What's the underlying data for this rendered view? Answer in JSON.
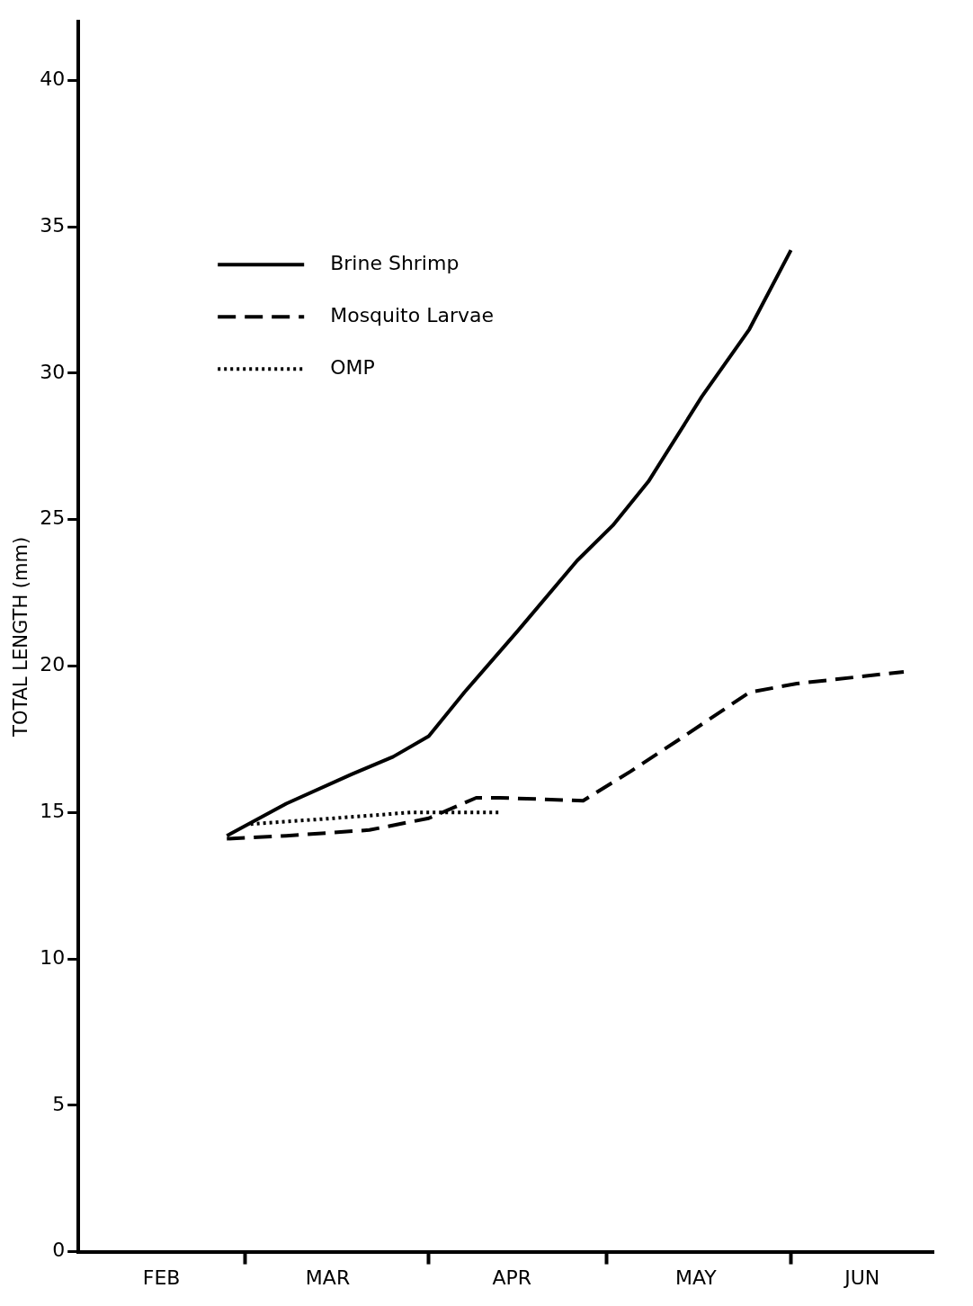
{
  "chart_data": {
    "type": "line",
    "ylabel": "TOTAL LENGTH (mm)",
    "xlim": [
      "--02-01",
      "--06-25"
    ],
    "xticks": [
      {
        "value": "--02-15",
        "label": "FEB"
      },
      {
        "value": "--03-01",
        "label": null
      },
      {
        "value": "--03-15",
        "label": "MAR"
      },
      {
        "value": "--04-01",
        "label": null
      },
      {
        "value": "--04-15",
        "label": "APR"
      },
      {
        "value": "--05-01",
        "label": null
      },
      {
        "value": "--05-16",
        "label": "MAY"
      },
      {
        "value": "--06-01",
        "label": null
      },
      {
        "value": "--06-13",
        "label": "JUN"
      }
    ],
    "ylim": [
      0,
      42
    ],
    "yticks": [
      0,
      5,
      10,
      15,
      20,
      25,
      30,
      35,
      40
    ],
    "grid": false,
    "legend": "top left",
    "marker": "none",
    "series": [
      {
        "name": "Brine Shrimp",
        "color": "#000000",
        "line_style": "solid",
        "x": [
          "--02-26",
          "--03-08",
          "--03-19",
          "--03-26",
          "--04-01",
          "--04-07",
          "--04-16",
          "--04-26",
          "--05-02",
          "--05-08",
          "--05-17",
          "--05-25",
          "--06-01"
        ],
        "values": [
          14.2,
          15.3,
          16.3,
          16.9,
          17.6,
          19.1,
          21.2,
          23.6,
          24.8,
          26.3,
          29.2,
          31.5,
          34.2
        ]
      },
      {
        "name": "Mosquito Larvae",
        "color": "#000000",
        "line_style": "dashed",
        "x": [
          "--02-26",
          "--03-08",
          "--03-22",
          "--04-01",
          "--04-09",
          "--04-13",
          "--04-27",
          "--05-05",
          "--05-14",
          "--05-25",
          "--06-02",
          "--06-20"
        ],
        "values": [
          14.1,
          14.2,
          14.4,
          14.8,
          15.5,
          15.5,
          15.4,
          16.4,
          17.6,
          19.1,
          19.4,
          19.8
        ]
      },
      {
        "name": "OMP",
        "color": "#000000",
        "line_style": "dotted",
        "x": [
          "--03-02",
          "--03-16",
          "--03-29",
          "--04-13"
        ],
        "values": [
          14.6,
          14.8,
          15.0,
          15.0
        ]
      }
    ]
  }
}
